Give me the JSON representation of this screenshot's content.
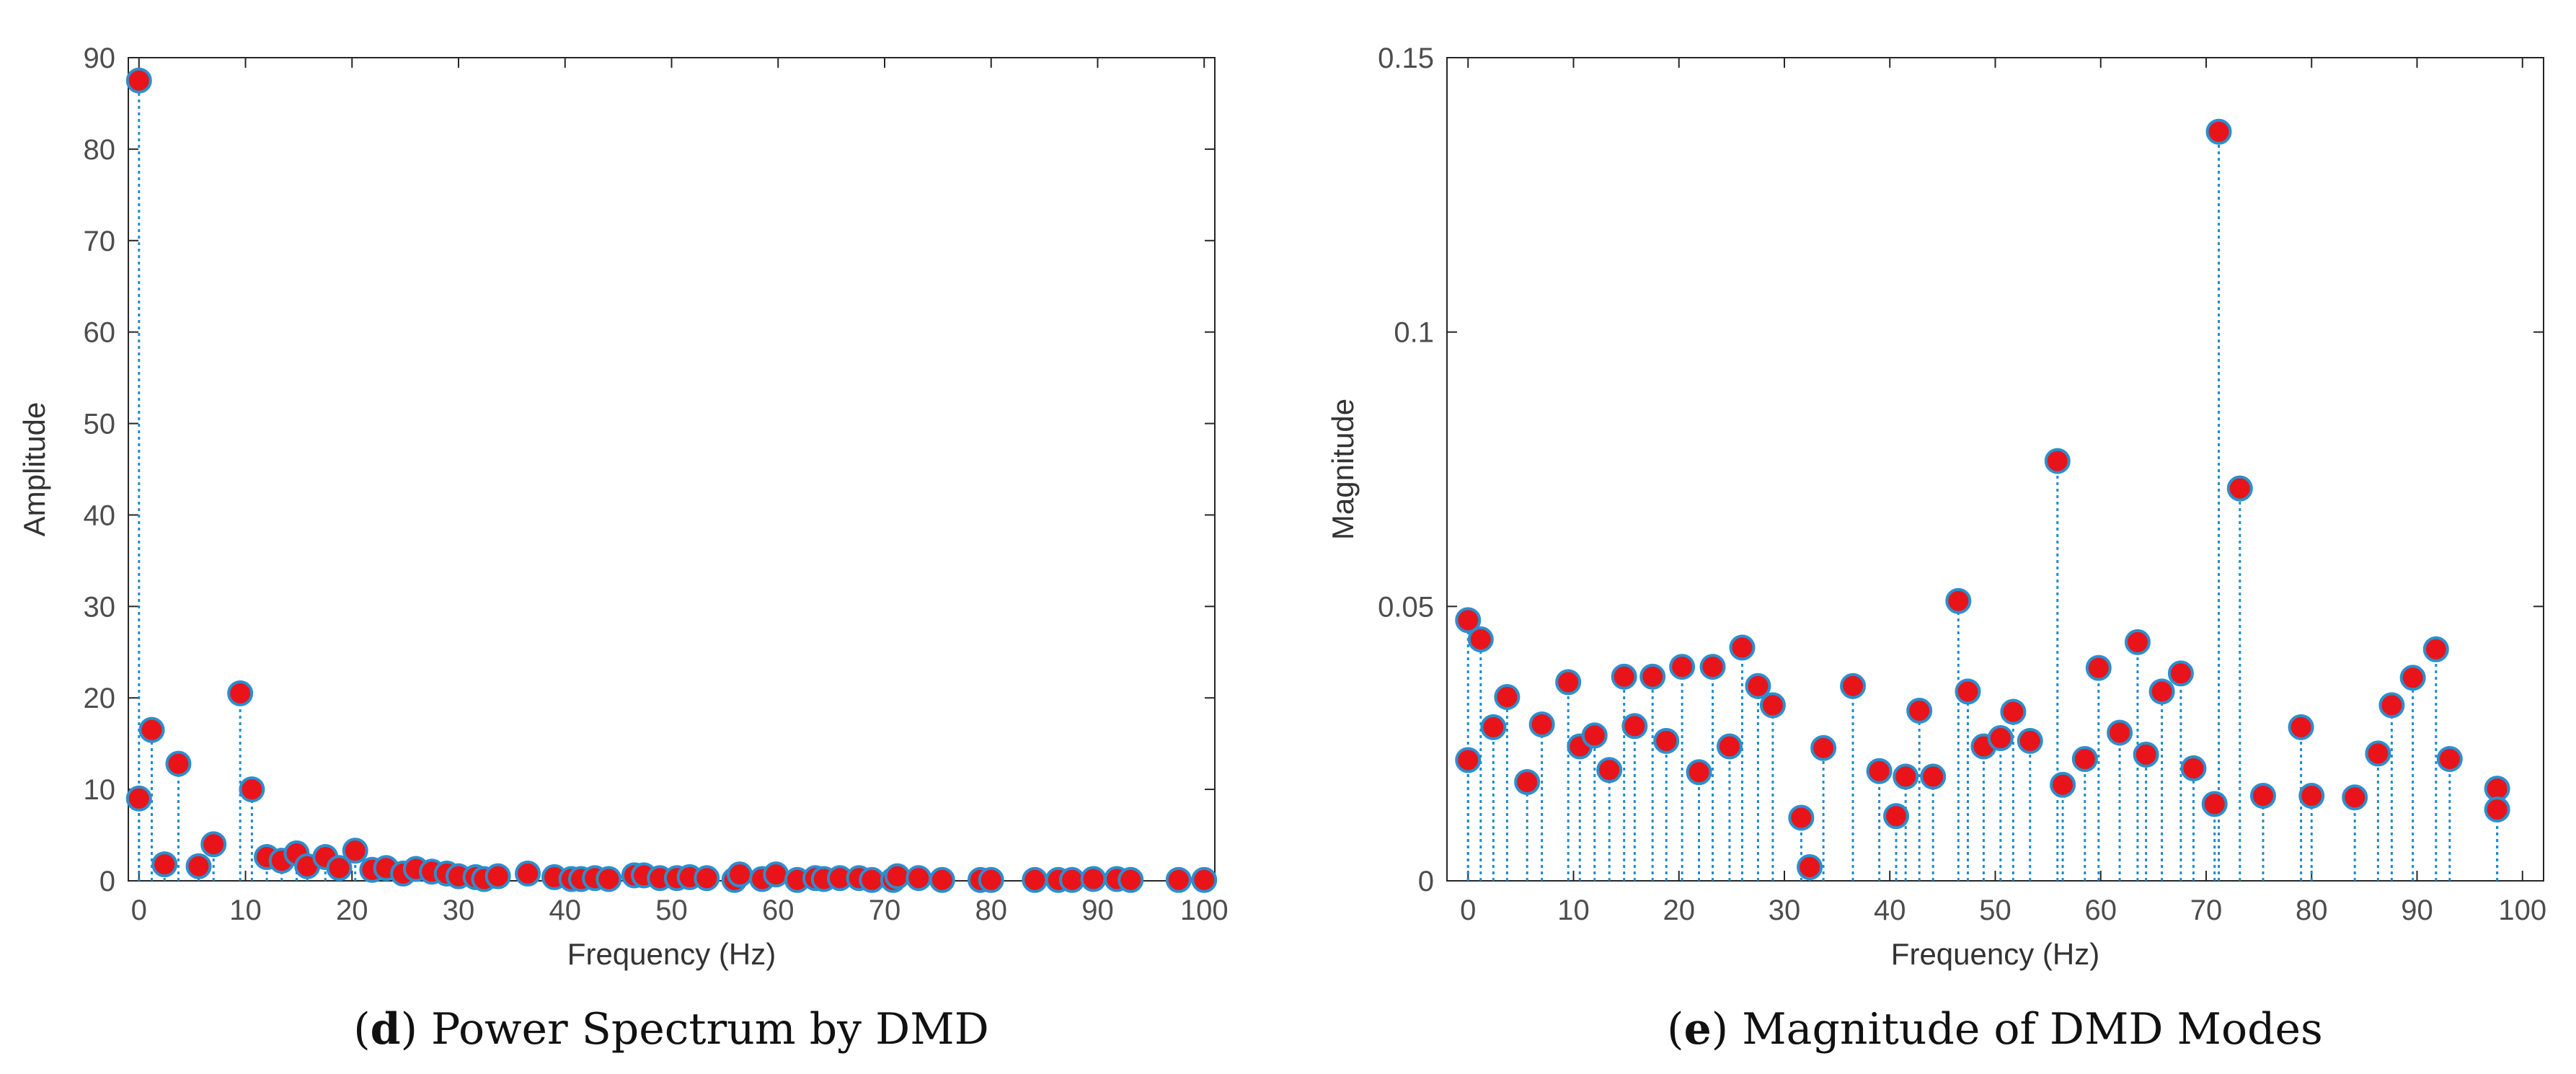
{
  "colors": {
    "stem": "#1c8ccc",
    "marker_fill": "#e8141a",
    "marker_edge": "#2a8fd0",
    "axis": "#262626",
    "tick_text": "#4d4d4d"
  },
  "chart_data": [
    {
      "type": "stem",
      "caption_letter": "d",
      "caption_text": ") Power Spectrum by DMD",
      "caption_open": "(",
      "xlabel": "Frequency (Hz)",
      "ylabel": "Amplitude",
      "xlim": [
        -1,
        101
      ],
      "ylim": [
        0,
        90
      ],
      "xticks": [
        0,
        10,
        20,
        30,
        40,
        50,
        60,
        70,
        80,
        90,
        100
      ],
      "yticks": [
        0,
        10,
        20,
        30,
        40,
        50,
        60,
        70,
        80,
        90
      ],
      "xtick_labels": [
        "0",
        "10",
        "20",
        "30",
        "40",
        "50",
        "60",
        "70",
        "80",
        "90",
        "100"
      ],
      "ytick_labels": [
        "0",
        "10",
        "20",
        "30",
        "40",
        "50",
        "60",
        "70",
        "80",
        "90"
      ],
      "points": [
        [
          0,
          87.5
        ],
        [
          0,
          9.0
        ],
        [
          1.2,
          16.5
        ],
        [
          2.4,
          1.8
        ],
        [
          3.7,
          12.8
        ],
        [
          5.6,
          1.6
        ],
        [
          7.0,
          4.0
        ],
        [
          9.5,
          20.5
        ],
        [
          10.6,
          10.0
        ],
        [
          12.0,
          2.6
        ],
        [
          13.4,
          2.2
        ],
        [
          14.8,
          3.0
        ],
        [
          15.8,
          1.6
        ],
        [
          17.5,
          2.6
        ],
        [
          18.8,
          1.4
        ],
        [
          20.3,
          3.3
        ],
        [
          21.9,
          1.2
        ],
        [
          23.2,
          1.4
        ],
        [
          24.8,
          0.8
        ],
        [
          26.0,
          1.3
        ],
        [
          27.5,
          1.0
        ],
        [
          28.9,
          0.8
        ],
        [
          30.0,
          0.5
        ],
        [
          31.6,
          0.4
        ],
        [
          32.4,
          0.2
        ],
        [
          33.7,
          0.5
        ],
        [
          36.5,
          0.8
        ],
        [
          39.0,
          0.4
        ],
        [
          40.6,
          0.2
        ],
        [
          41.5,
          0.2
        ],
        [
          42.8,
          0.3
        ],
        [
          44.1,
          0.2
        ],
        [
          46.5,
          0.6
        ],
        [
          47.4,
          0.6
        ],
        [
          48.9,
          0.3
        ],
        [
          50.5,
          0.3
        ],
        [
          51.7,
          0.4
        ],
        [
          53.3,
          0.3
        ],
        [
          55.9,
          0.1
        ],
        [
          56.4,
          0.7
        ],
        [
          58.5,
          0.2
        ],
        [
          59.8,
          0.7
        ],
        [
          61.8,
          0.1
        ],
        [
          63.5,
          0.3
        ],
        [
          64.3,
          0.2
        ],
        [
          65.8,
          0.3
        ],
        [
          67.6,
          0.3
        ],
        [
          68.8,
          0.1
        ],
        [
          70.8,
          0.1
        ],
        [
          71.2,
          0.5
        ],
        [
          73.2,
          0.3
        ],
        [
          75.4,
          0.1
        ],
        [
          79.0,
          0.1
        ],
        [
          80.0,
          0.1
        ],
        [
          84.1,
          0.1
        ],
        [
          86.3,
          0.1
        ],
        [
          87.6,
          0.1
        ],
        [
          89.6,
          0.2
        ],
        [
          91.8,
          0.2
        ],
        [
          93.1,
          0.1
        ],
        [
          97.6,
          0.1
        ],
        [
          100.0,
          0.1
        ]
      ]
    },
    {
      "type": "stem",
      "caption_letter": "e",
      "caption_text": ") Magnitude of DMD Modes",
      "caption_open": "(",
      "xlabel": "Frequency (Hz)",
      "ylabel": "Magnitude",
      "xlim": [
        -2,
        102
      ],
      "ylim": [
        0,
        0.15
      ],
      "xticks": [
        0,
        10,
        20,
        30,
        40,
        50,
        60,
        70,
        80,
        90,
        100
      ],
      "yticks": [
        0,
        0.05,
        0.1,
        0.15
      ],
      "xtick_labels": [
        "0",
        "10",
        "20",
        "30",
        "40",
        "50",
        "60",
        "70",
        "80",
        "90",
        "100"
      ],
      "ytick_labels": [
        "0",
        "0.05",
        "0.1",
        "0.15"
      ],
      "points": [
        [
          0,
          0.0475
        ],
        [
          0,
          0.022
        ],
        [
          1.2,
          0.044
        ],
        [
          2.4,
          0.028
        ],
        [
          3.7,
          0.0335
        ],
        [
          5.6,
          0.018
        ],
        [
          7.0,
          0.0285
        ],
        [
          9.5,
          0.0362
        ],
        [
          10.6,
          0.0245
        ],
        [
          12.0,
          0.0265
        ],
        [
          13.4,
          0.0202
        ],
        [
          14.8,
          0.0372
        ],
        [
          15.8,
          0.0282
        ],
        [
          17.5,
          0.0372
        ],
        [
          18.8,
          0.0255
        ],
        [
          20.3,
          0.039
        ],
        [
          21.9,
          0.0198
        ],
        [
          23.2,
          0.039
        ],
        [
          24.8,
          0.0245
        ],
        [
          26.0,
          0.0425
        ],
        [
          27.5,
          0.0355
        ],
        [
          28.9,
          0.032
        ],
        [
          31.6,
          0.0115
        ],
        [
          32.4,
          0.0025
        ],
        [
          33.7,
          0.0242
        ],
        [
          36.5,
          0.0355
        ],
        [
          39.0,
          0.02
        ],
        [
          40.6,
          0.0118
        ],
        [
          41.5,
          0.019
        ],
        [
          42.8,
          0.031
        ],
        [
          44.1,
          0.019
        ],
        [
          46.5,
          0.051
        ],
        [
          47.4,
          0.0345
        ],
        [
          48.9,
          0.0245
        ],
        [
          50.5,
          0.026
        ],
        [
          51.7,
          0.0308
        ],
        [
          53.3,
          0.0255
        ],
        [
          55.9,
          0.0765
        ],
        [
          56.4,
          0.0175
        ],
        [
          58.5,
          0.0222
        ],
        [
          59.8,
          0.0388
        ],
        [
          61.8,
          0.027
        ],
        [
          63.5,
          0.0435
        ],
        [
          64.3,
          0.023
        ],
        [
          65.8,
          0.0345
        ],
        [
          67.6,
          0.0378
        ],
        [
          68.8,
          0.0205
        ],
        [
          70.8,
          0.014
        ],
        [
          71.2,
          0.1365
        ],
        [
          73.2,
          0.0715
        ],
        [
          75.4,
          0.0155
        ],
        [
          79.0,
          0.028
        ],
        [
          80.0,
          0.0155
        ],
        [
          84.1,
          0.0152
        ],
        [
          86.3,
          0.0232
        ],
        [
          87.6,
          0.032
        ],
        [
          89.6,
          0.037
        ],
        [
          91.8,
          0.0422
        ],
        [
          93.1,
          0.0222
        ],
        [
          97.6,
          0.0168
        ],
        [
          97.6,
          0.013
        ]
      ]
    }
  ]
}
